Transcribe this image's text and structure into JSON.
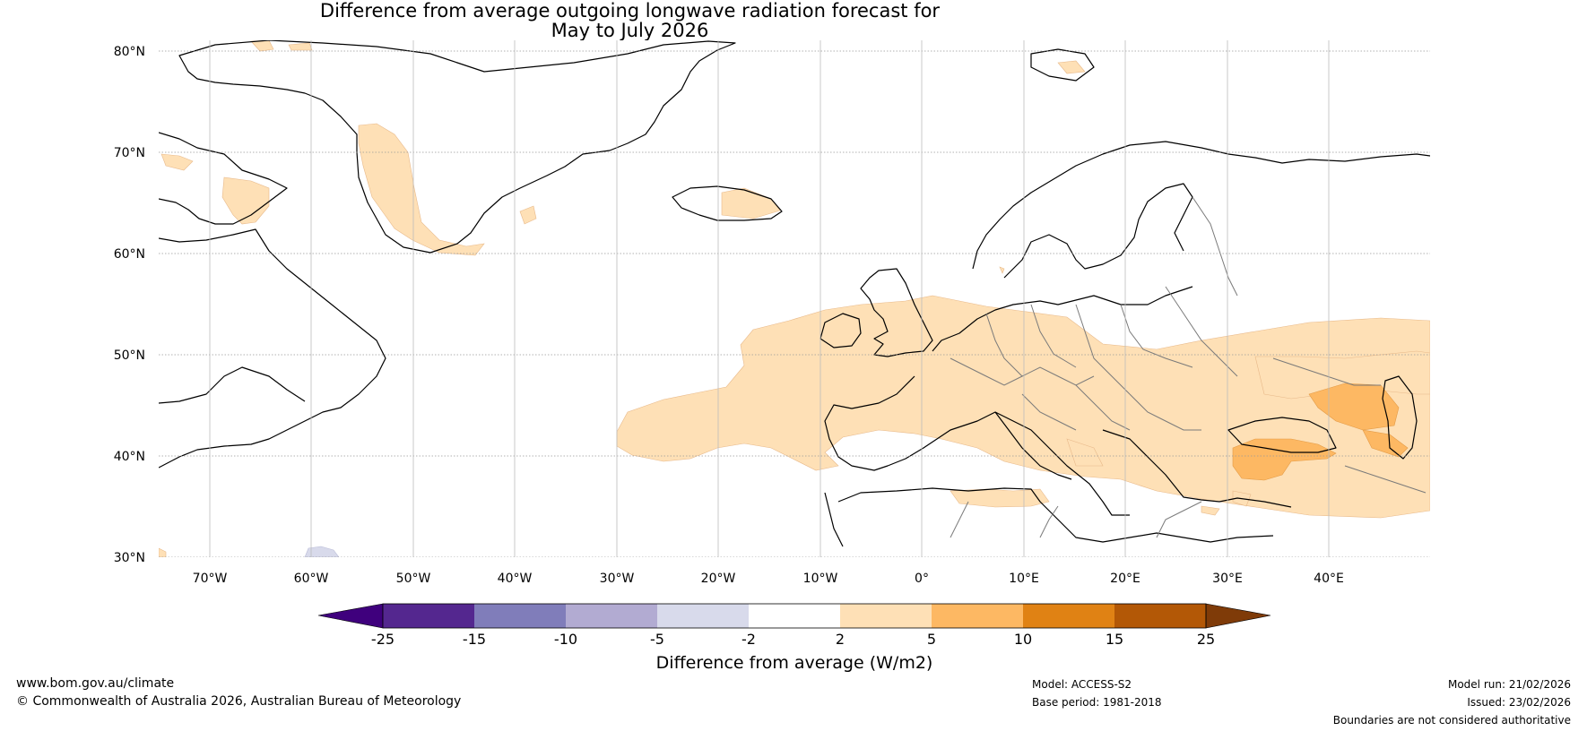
{
  "title": {
    "line1": "Difference from average outgoing longwave radiation forecast for",
    "line2": "May to July 2026"
  },
  "map": {
    "lat_labels": [
      "80°N",
      "70°N",
      "60°N",
      "50°N",
      "40°N",
      "30°N"
    ],
    "lon_labels": [
      "70°W",
      "60°W",
      "50°W",
      "40°W",
      "30°W",
      "20°W",
      "10°W",
      "0°",
      "10°E",
      "20°E",
      "30°E",
      "40°E"
    ],
    "extent": {
      "lon_min": -75,
      "lon_max": 50,
      "lat_min": 30,
      "lat_max": 81
    }
  },
  "colorbar": {
    "labels": [
      "-25",
      "-15",
      "-10",
      "-5",
      "-2",
      "2",
      "5",
      "10",
      "15",
      "25"
    ],
    "colors": [
      "#3f007d",
      "#54278f",
      "#807dba",
      "#b2abd2",
      "#d8daeb",
      "#ffffff",
      "#fee0b6",
      "#fdb863",
      "#e08214",
      "#b35806",
      "#7f3b08"
    ],
    "title": "Difference from average (W/m2)"
  },
  "footer": {
    "website": "www.bom.gov.au/climate",
    "copyright": "© Commonwealth of Australia 2026, Australian Bureau of Meteorology",
    "model": "Model: ACCESS-S2",
    "base_period": "Base period: 1981-2018",
    "model_run": "Model run: 21/02/2026",
    "issued": "Issued: 23/02/2026",
    "boundaries": "Boundaries are not considered authoritative"
  }
}
